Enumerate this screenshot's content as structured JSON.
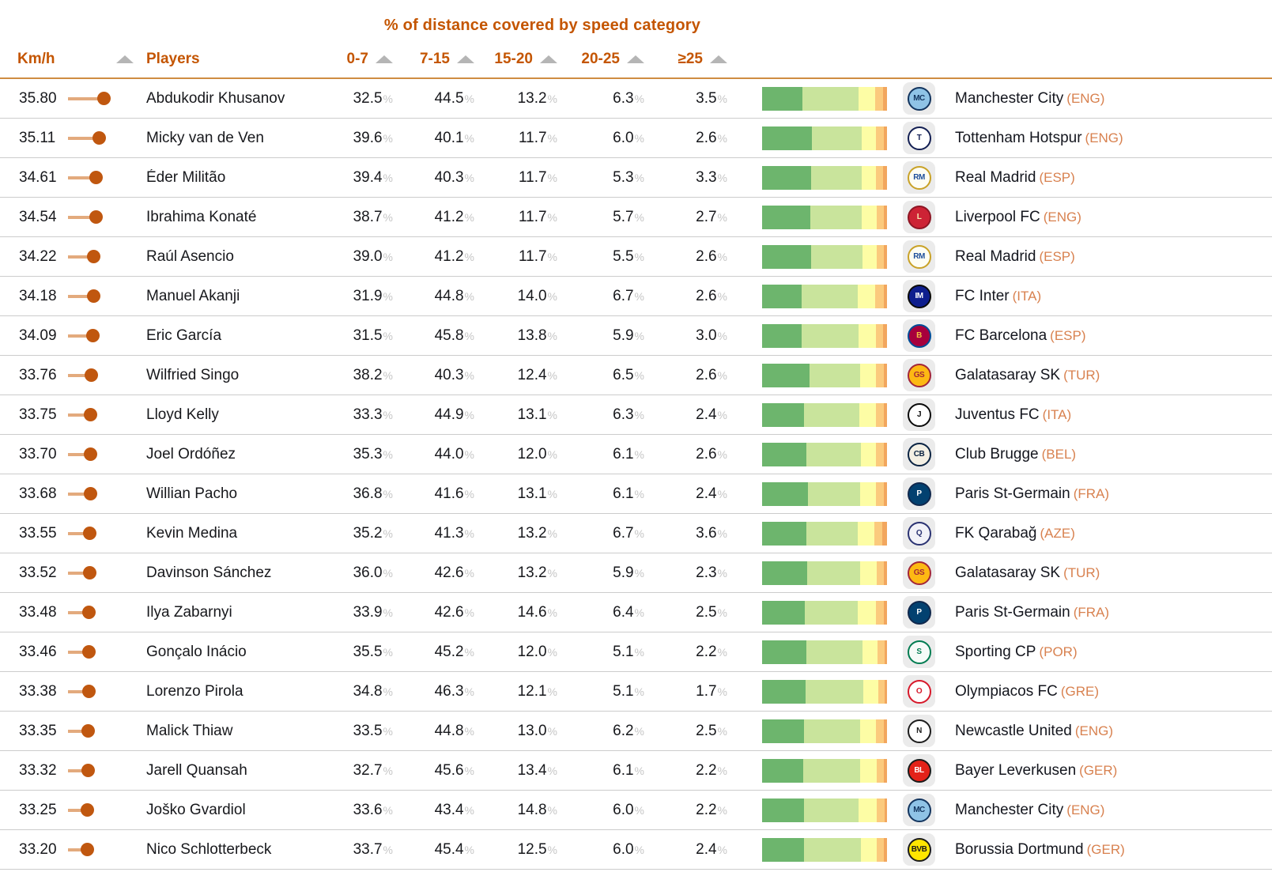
{
  "title": "% of distance covered by speed category",
  "header": {
    "kmh_label": "Km/h",
    "players_label": "Players"
  },
  "percent_sign": "%",
  "colors": {
    "accent_orange": "#c45500",
    "country_orange": "#d8814f",
    "sort_triangle_gray": "#b5b5b5",
    "row_divider_gray": "#cccccc",
    "header_underline": "#cf8c42",
    "lollipop_line": "#e3aa7d",
    "lollipop_dot": "#c0570f",
    "bar_segment_colors": [
      "#6db56d",
      "#c9e49c",
      "#fdfda5",
      "#fbca7d",
      "#f2a65e"
    ]
  },
  "chart_data": {
    "type": "table",
    "title": "% of distance covered by speed category",
    "columns": [
      "Km/h",
      "Players",
      "0-7",
      "7-15",
      "15-20",
      "20-25",
      "≥25",
      "Club"
    ],
    "speed_categories": [
      "0-7",
      "7-15",
      "15-20",
      "20-25",
      "≥25"
    ],
    "lollipop_axis": {
      "label": "Km/h",
      "min": 33.2,
      "max": 35.8
    },
    "bar_encoding": "stacked horizontal bar per row of the five speed-category percentages (sums to 100%)",
    "rows": [
      {
        "kmh": "35.80",
        "player": "Abdukodir Khusanov",
        "pcts": [
          32.5,
          44.5,
          13.2,
          6.3,
          3.5
        ],
        "club": "Manchester City",
        "country": "ENG",
        "logo": {
          "initials": "MC",
          "bg": "#8fc3e6",
          "border": "#13355f",
          "text": "#13355f"
        }
      },
      {
        "kmh": "35.11",
        "player": "Micky van de Ven",
        "pcts": [
          39.6,
          40.1,
          11.7,
          6.0,
          2.6
        ],
        "club": "Tottenham Hotspur",
        "country": "ENG",
        "logo": {
          "initials": "T",
          "bg": "#ffffff",
          "border": "#131f53",
          "text": "#131f53"
        }
      },
      {
        "kmh": "34.61",
        "player": "Éder Militão",
        "pcts": [
          39.4,
          40.3,
          11.7,
          5.3,
          3.3
        ],
        "club": "Real Madrid",
        "country": "ESP",
        "logo": {
          "initials": "RM",
          "bg": "#fdfdf4",
          "border": "#c9a227",
          "text": "#1d4e9b"
        }
      },
      {
        "kmh": "34.54",
        "player": "Ibrahima Konaté",
        "pcts": [
          38.7,
          41.2,
          11.7,
          5.7,
          2.7
        ],
        "club": "Liverpool FC",
        "country": "ENG",
        "logo": {
          "initials": "L",
          "bg": "#cd2335",
          "border": "#8e1624",
          "text": "#f8e8b0"
        }
      },
      {
        "kmh": "34.22",
        "player": "Raúl Asencio",
        "pcts": [
          39.0,
          41.2,
          11.7,
          5.5,
          2.6
        ],
        "club": "Real Madrid",
        "country": "ESP",
        "logo": {
          "initials": "RM",
          "bg": "#fdfdf4",
          "border": "#c9a227",
          "text": "#1d4e9b"
        }
      },
      {
        "kmh": "34.18",
        "player": "Manuel Akanji",
        "pcts": [
          31.9,
          44.8,
          14.0,
          6.7,
          2.6
        ],
        "club": "FC Inter",
        "country": "ITA",
        "logo": {
          "initials": "IM",
          "bg": "#0e1e8e",
          "border": "#0a0a0a",
          "text": "#ffffff"
        }
      },
      {
        "kmh": "34.09",
        "player": "Eric García",
        "pcts": [
          31.5,
          45.8,
          13.8,
          5.9,
          3.0
        ],
        "club": "FC Barcelona",
        "country": "ESP",
        "logo": {
          "initials": "B",
          "bg": "#a7003c",
          "border": "#004c98",
          "text": "#f0c040"
        }
      },
      {
        "kmh": "33.76",
        "player": "Wilfried Singo",
        "pcts": [
          38.2,
          40.3,
          12.4,
          6.5,
          2.6
        ],
        "club": "Galatasaray SK",
        "country": "TUR",
        "logo": {
          "initials": "GS",
          "bg": "#fdb913",
          "border": "#a32638",
          "text": "#a32638"
        }
      },
      {
        "kmh": "33.75",
        "player": "Lloyd Kelly",
        "pcts": [
          33.3,
          44.9,
          13.1,
          6.3,
          2.4
        ],
        "club": "Juventus FC",
        "country": "ITA",
        "logo": {
          "initials": "J",
          "bg": "#ffffff",
          "border": "#0a0a0a",
          "text": "#0a0a0a"
        }
      },
      {
        "kmh": "33.70",
        "player": "Joel Ordóñez",
        "pcts": [
          35.3,
          44.0,
          12.0,
          6.1,
          2.6
        ],
        "club": "Club Brugge",
        "country": "BEL",
        "logo": {
          "initials": "CB",
          "bg": "#f4f0e4",
          "border": "#0a2342",
          "text": "#0a2342"
        }
      },
      {
        "kmh": "33.68",
        "player": "Willian Pacho",
        "pcts": [
          36.8,
          41.6,
          13.1,
          6.1,
          2.4
        ],
        "club": "Paris St-Germain",
        "country": "FRA",
        "logo": {
          "initials": "P",
          "bg": "#024170",
          "border": "#10284d",
          "text": "#ffffff"
        }
      },
      {
        "kmh": "33.55",
        "player": "Kevin Medina",
        "pcts": [
          35.2,
          41.3,
          13.2,
          6.7,
          3.6
        ],
        "club": "FK Qarabağ",
        "country": "AZE",
        "logo": {
          "initials": "Q",
          "bg": "#f2f2f8",
          "border": "#2a3272",
          "text": "#2a3272"
        }
      },
      {
        "kmh": "33.52",
        "player": "Davinson Sánchez",
        "pcts": [
          36.0,
          42.6,
          13.2,
          5.9,
          2.3
        ],
        "club": "Galatasaray SK",
        "country": "TUR",
        "logo": {
          "initials": "GS",
          "bg": "#fdb913",
          "border": "#a32638",
          "text": "#a32638"
        }
      },
      {
        "kmh": "33.48",
        "player": "Ilya Zabarnyi",
        "pcts": [
          33.9,
          42.6,
          14.6,
          6.4,
          2.5
        ],
        "club": "Paris St-Germain",
        "country": "FRA",
        "logo": {
          "initials": "P",
          "bg": "#024170",
          "border": "#10284d",
          "text": "#ffffff"
        }
      },
      {
        "kmh": "33.46",
        "player": "Gonçalo Inácio",
        "pcts": [
          35.5,
          45.2,
          12.0,
          5.1,
          2.2
        ],
        "club": "Sporting CP",
        "country": "POR",
        "logo": {
          "initials": "S",
          "bg": "#f6fbf8",
          "border": "#007c51",
          "text": "#007c51"
        }
      },
      {
        "kmh": "33.38",
        "player": "Lorenzo Pirola",
        "pcts": [
          34.8,
          46.3,
          12.1,
          5.1,
          1.7
        ],
        "club": "Olympiacos FC",
        "country": "GRE",
        "logo": {
          "initials": "O",
          "bg": "#ffffff",
          "border": "#d7182a",
          "text": "#d7182a"
        }
      },
      {
        "kmh": "33.35",
        "player": "Malick Thiaw",
        "pcts": [
          33.5,
          44.8,
          13.0,
          6.2,
          2.5
        ],
        "club": "Newcastle United",
        "country": "ENG",
        "logo": {
          "initials": "N",
          "bg": "#ffffff",
          "border": "#1c1c1c",
          "text": "#1c1c1c"
        }
      },
      {
        "kmh": "33.32",
        "player": "Jarell Quansah",
        "pcts": [
          32.7,
          45.6,
          13.4,
          6.1,
          2.2
        ],
        "club": "Bayer Leverkusen",
        "country": "GER",
        "logo": {
          "initials": "BL",
          "bg": "#e32219",
          "border": "#1a1a1a",
          "text": "#ffffff"
        }
      },
      {
        "kmh": "33.25",
        "player": "Joško Gvardiol",
        "pcts": [
          33.6,
          43.4,
          14.8,
          6.0,
          2.2
        ],
        "club": "Manchester City",
        "country": "ENG",
        "logo": {
          "initials": "MC",
          "bg": "#8fc3e6",
          "border": "#13355f",
          "text": "#13355f"
        }
      },
      {
        "kmh": "33.20",
        "player": "Nico Schlotterbeck",
        "pcts": [
          33.7,
          45.4,
          12.5,
          6.0,
          2.4
        ],
        "club": "Borussia Dortmund",
        "country": "GER",
        "logo": {
          "initials": "BVB",
          "bg": "#ffe600",
          "border": "#1a1a1a",
          "text": "#1a1a1a"
        }
      }
    ]
  }
}
